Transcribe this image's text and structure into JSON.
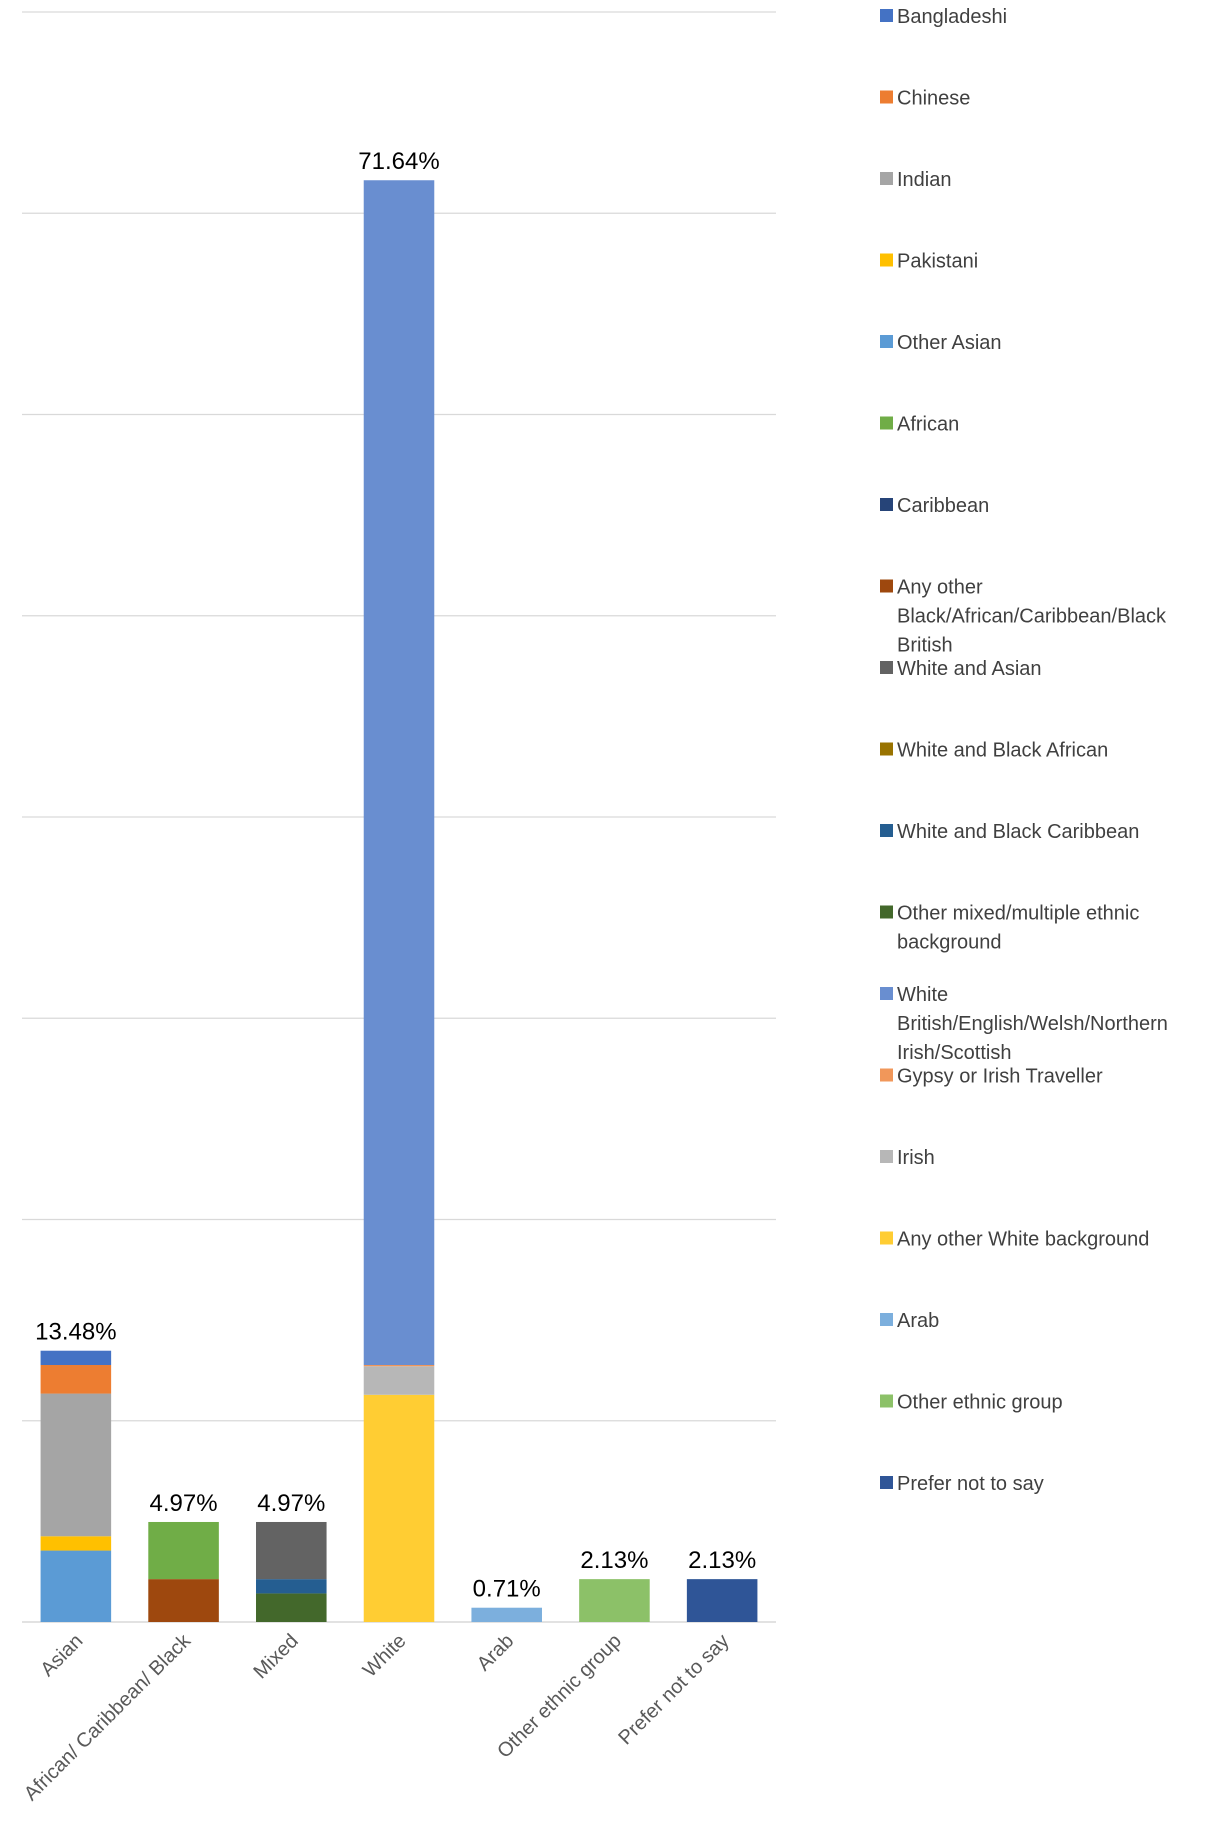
{
  "chart_data": {
    "type": "bar",
    "stacked": true,
    "categories": [
      "Asian",
      "African/ Caribbean/ Black",
      "Mixed",
      "White",
      "Arab",
      "Other ethnic group",
      "Prefer not to say"
    ],
    "totals": [
      "13.48%",
      "4.97%",
      "4.97%",
      "71.64%",
      "0.71%",
      "2.13%",
      "2.13%"
    ],
    "total_values": [
      13.48,
      4.97,
      4.97,
      71.64,
      0.71,
      2.13,
      2.13
    ],
    "ylim": [
      0,
      80
    ],
    "grid": true,
    "legend_position": "right",
    "series": [
      {
        "name": "Bangladeshi",
        "color": "#4472C4",
        "values": [
          0.71,
          0,
          0,
          0,
          0,
          0,
          0
        ]
      },
      {
        "name": "Chinese",
        "color": "#ED7D31",
        "values": [
          1.42,
          0,
          0,
          0,
          0,
          0,
          0
        ]
      },
      {
        "name": "Indian",
        "color": "#A5A5A5",
        "values": [
          7.09,
          0,
          0,
          0,
          0,
          0,
          0
        ]
      },
      {
        "name": "Pakistani",
        "color": "#FFC000",
        "values": [
          0.71,
          0,
          0,
          0,
          0,
          0,
          0
        ]
      },
      {
        "name": "Other Asian",
        "color": "#5B9BD5",
        "values": [
          3.55,
          0,
          0,
          0,
          0,
          0,
          0
        ]
      },
      {
        "name": "African",
        "color": "#70AD47",
        "values": [
          0,
          2.84,
          0,
          0,
          0,
          0,
          0
        ]
      },
      {
        "name": "Caribbean",
        "color": "#264478",
        "values": [
          0,
          0,
          0,
          0,
          0,
          0,
          0
        ]
      },
      {
        "name": "Any other Black/African/Caribbean/Black British",
        "color": "#9E480E",
        "values": [
          0,
          2.13,
          0,
          0,
          0,
          0,
          0
        ]
      },
      {
        "name": "White and Asian",
        "color": "#636363",
        "values": [
          0,
          0,
          2.84,
          0,
          0,
          0,
          0
        ]
      },
      {
        "name": "White and Black African",
        "color": "#997300",
        "values": [
          0,
          0,
          0,
          0,
          0,
          0,
          0
        ]
      },
      {
        "name": "White and Black Caribbean",
        "color": "#255E91",
        "values": [
          0,
          0,
          0.71,
          0,
          0,
          0,
          0
        ]
      },
      {
        "name": "Other mixed/multiple ethnic background",
        "color": "#43682B",
        "values": [
          0,
          0,
          1.42,
          0,
          0,
          0,
          0
        ]
      },
      {
        "name": "White British/English/Welsh/Northern Irish/Scottish",
        "color": "#698ED0",
        "values": [
          0,
          0,
          0,
          58.87,
          0,
          0,
          0
        ]
      },
      {
        "name": "Gypsy or Irish Traveller",
        "color": "#F1975A",
        "values": [
          0,
          0,
          0,
          0.06,
          0,
          0,
          0
        ]
      },
      {
        "name": "Irish",
        "color": "#B7B7B7",
        "values": [
          0,
          0,
          0,
          1.42,
          0,
          0,
          0
        ]
      },
      {
        "name": "Any other White background",
        "color": "#FFCD33",
        "values": [
          0,
          0,
          0,
          11.29,
          0,
          0,
          0
        ]
      },
      {
        "name": "Arab",
        "color": "#7CAFDD",
        "values": [
          0,
          0,
          0,
          0,
          0.71,
          0,
          0
        ]
      },
      {
        "name": "Other ethnic group",
        "color": "#8CC168",
        "values": [
          0,
          0,
          0,
          0,
          0,
          2.13,
          0
        ]
      },
      {
        "name": "Prefer not to say",
        "color": "#2F5597",
        "values": [
          0,
          0,
          0,
          0,
          0,
          0,
          2.13
        ]
      }
    ],
    "legend_lines": [
      [
        "Bangladeshi"
      ],
      [
        "Chinese"
      ],
      [
        "Indian"
      ],
      [
        "Pakistani"
      ],
      [
        "Other Asian"
      ],
      [
        "African"
      ],
      [
        "Caribbean"
      ],
      [
        "Any other",
        "Black/African/Caribbean/Black",
        "British"
      ],
      [
        "White and Asian"
      ],
      [
        "White and Black African"
      ],
      [
        "White and Black Caribbean"
      ],
      [
        "Other mixed/multiple ethnic",
        "background"
      ],
      [
        "White",
        "British/English/Welsh/Northern",
        "Irish/Scottish"
      ],
      [
        "Gypsy or Irish Traveller"
      ],
      [
        "Irish"
      ],
      [
        "Any other White background"
      ],
      [
        "Arab"
      ],
      [
        "Other ethnic group"
      ],
      [
        "Prefer not to say"
      ]
    ]
  }
}
